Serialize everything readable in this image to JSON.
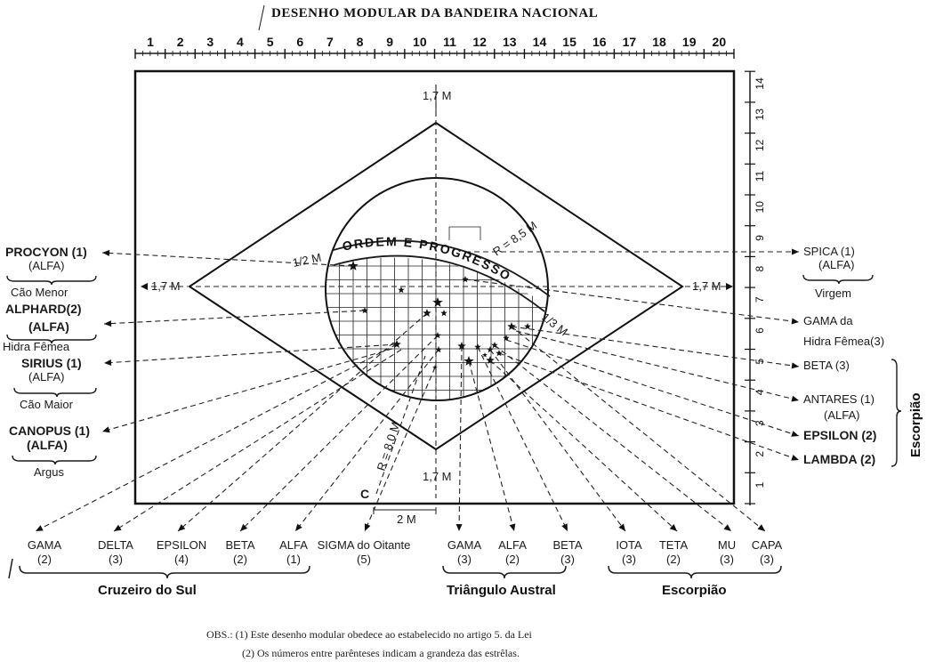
{
  "title": "DESENHO MODULAR DA BANDEIRA NACIONAL",
  "motto": "ORDEM E PROGRESSO",
  "x_scale_labels": [
    "1",
    "2",
    "3",
    "4",
    "5",
    "6",
    "7",
    "8",
    "9",
    "10",
    "11",
    "12",
    "13",
    "14",
    "15",
    "16",
    "17",
    "18",
    "19",
    "20"
  ],
  "y_scale_labels": [
    "1",
    "2",
    "3",
    "4",
    "5",
    "6",
    "7",
    "8",
    "9",
    "10",
    "11",
    "12",
    "13",
    "14"
  ],
  "dimensions": {
    "top": "1,7 M",
    "bottom": "1,7 M",
    "left": "1,7 M",
    "right": "1,7 M",
    "half_module": "1/2 M",
    "third_module": "1/3 M",
    "radius_arc": "R = 8,0 M",
    "radius_motto": "R = 8,5 M",
    "offset": "2 M",
    "center_mark": "C"
  },
  "left_labels": [
    {
      "name": "PROCYON (1)",
      "sub": "(ALFA)",
      "constellation": "Cão Menor"
    },
    {
      "name": "ALPHARD(2)",
      "sub": "(ALFA)",
      "constellation": "Hidra Fêmea"
    },
    {
      "name": "SIRIUS (1)",
      "sub": "(ALFA)",
      "constellation": "Cão Maior"
    },
    {
      "name": "CANOPUS (1)",
      "sub": "(ALFA)",
      "constellation": "Argus"
    }
  ],
  "right_labels": [
    {
      "name": "SPICA (1)",
      "sub": "(ALFA)",
      "constellation": "Virgem"
    },
    {
      "name": "GAMA da",
      "sub": "Hidra Fêmea(3)"
    },
    {
      "name": "BETA (3)"
    },
    {
      "name": "ANTARES (1)",
      "sub": "(ALFA)"
    },
    {
      "name": "EPSILON (2)"
    },
    {
      "name": "LAMBDA (2)"
    }
  ],
  "right_group": "Escorpião",
  "bottom_stars": [
    {
      "name": "GAMA",
      "mag": "(2)"
    },
    {
      "name": "DELTA",
      "mag": "(3)"
    },
    {
      "name": "EPSILON",
      "mag": "(4)"
    },
    {
      "name": "BETA",
      "mag": "(2)"
    },
    {
      "name": "ALFA",
      "mag": "(1)"
    },
    {
      "name": "SIGMA do Oitante",
      "mag": "(5)"
    },
    {
      "name": "GAMA",
      "mag": "(3)"
    },
    {
      "name": "ALFA",
      "mag": "(2)"
    },
    {
      "name": "BETA",
      "mag": "(3)"
    },
    {
      "name": "IOTA",
      "mag": "(3)"
    },
    {
      "name": "TETA",
      "mag": "(2)"
    },
    {
      "name": "MU",
      "mag": "(3)"
    },
    {
      "name": "CAPA",
      "mag": "(3)"
    }
  ],
  "bottom_groups": [
    "Cruzeiro do Sul",
    "Triângulo Austral",
    "Escorpião"
  ],
  "obs": [
    "OBS.: (1) Este desenho modular obedece ao estabelecido no artigo 5. da Lei",
    "(2) Os números entre parênteses indicam a grandeza das estrêlas."
  ]
}
